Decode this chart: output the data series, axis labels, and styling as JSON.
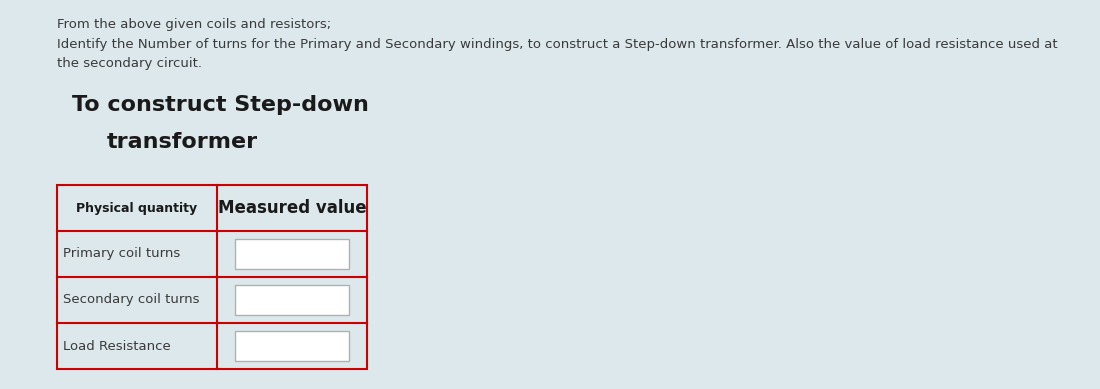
{
  "background_color": "#dde8ec",
  "text1": "From the above given coils and resistors;",
  "text2": "Identify the Number of turns for the Primary and Secondary windings, to construct a Step-down transformer. Also the value of load resistance used at the secondary circuit.",
  "heading_line1": "To construct Step-down",
  "heading_line2": "transformer",
  "col1_header": "Physical quantity",
  "col2_header": "Measured value",
  "rows": [
    "Primary coil turns",
    "Secondary coil turns",
    "Load Resistance"
  ],
  "table_border_color": "#cc0000",
  "input_box_color": "#ffffff",
  "input_box_border": "#b0b0b0",
  "text_color": "#3a3a3a",
  "heading_color": "#1a1a1a",
  "text_fontsize": 9.5,
  "heading_fontsize": 16,
  "col1_header_fontsize": 9,
  "col2_header_fontsize": 12,
  "row_label_fontsize": 9.5
}
